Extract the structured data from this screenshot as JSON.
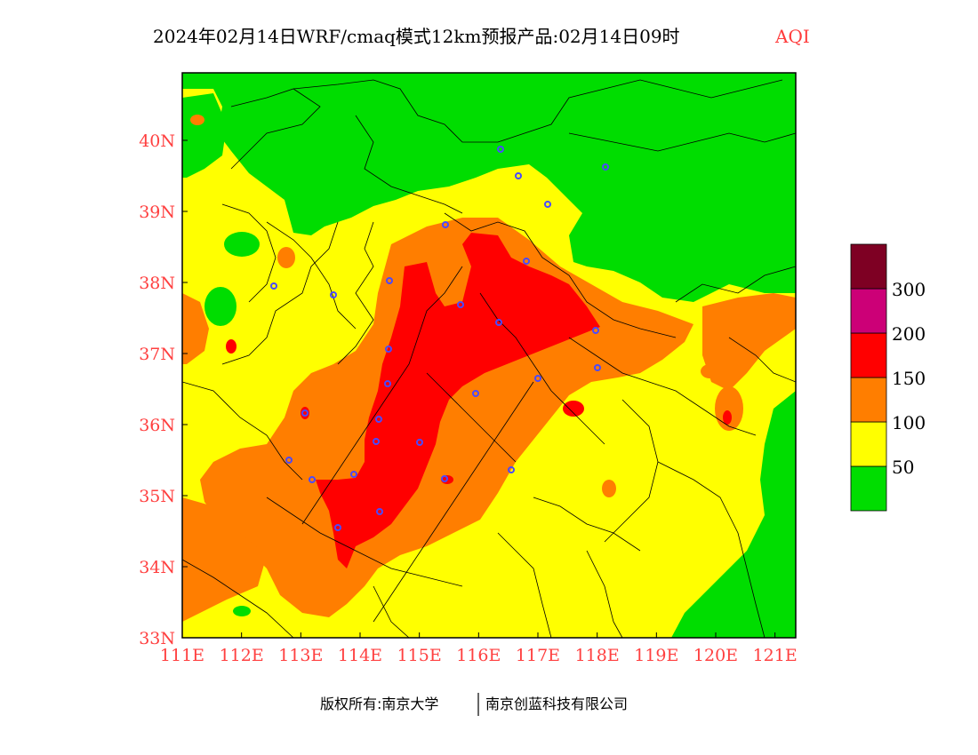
{
  "title": {
    "main": "2024年02月14日WRF/cmaq模式12km预报产品:02月14日09时",
    "variable": "AQI"
  },
  "axes": {
    "x_ticks": [
      "111E",
      "112E",
      "113E",
      "114E",
      "115E",
      "116E",
      "117E",
      "118E",
      "119E",
      "120E",
      "121E"
    ],
    "y_ticks": [
      "33N",
      "34N",
      "35N",
      "36N",
      "37N",
      "38N",
      "39N",
      "40N"
    ]
  },
  "legend": {
    "labels": [
      "50",
      "100",
      "150",
      "200",
      "300"
    ],
    "colors": [
      "#00dd00",
      "#ffff00",
      "#ff7e00",
      "#ff0000",
      "#cc0077",
      "#7e0023"
    ]
  },
  "credits": {
    "left": "版权所有:南京大学",
    "right": "南京创蓝科技有限公司"
  },
  "colors": {
    "good": "#00dd00",
    "moderate": "#ffff00",
    "usg": "#ff7e00",
    "unhealthy": "#ff0000",
    "very_unhealthy": "#cc0077",
    "hazardous": "#7e0023",
    "station": "#4a4aff",
    "tick_text": "#ff4040"
  }
}
